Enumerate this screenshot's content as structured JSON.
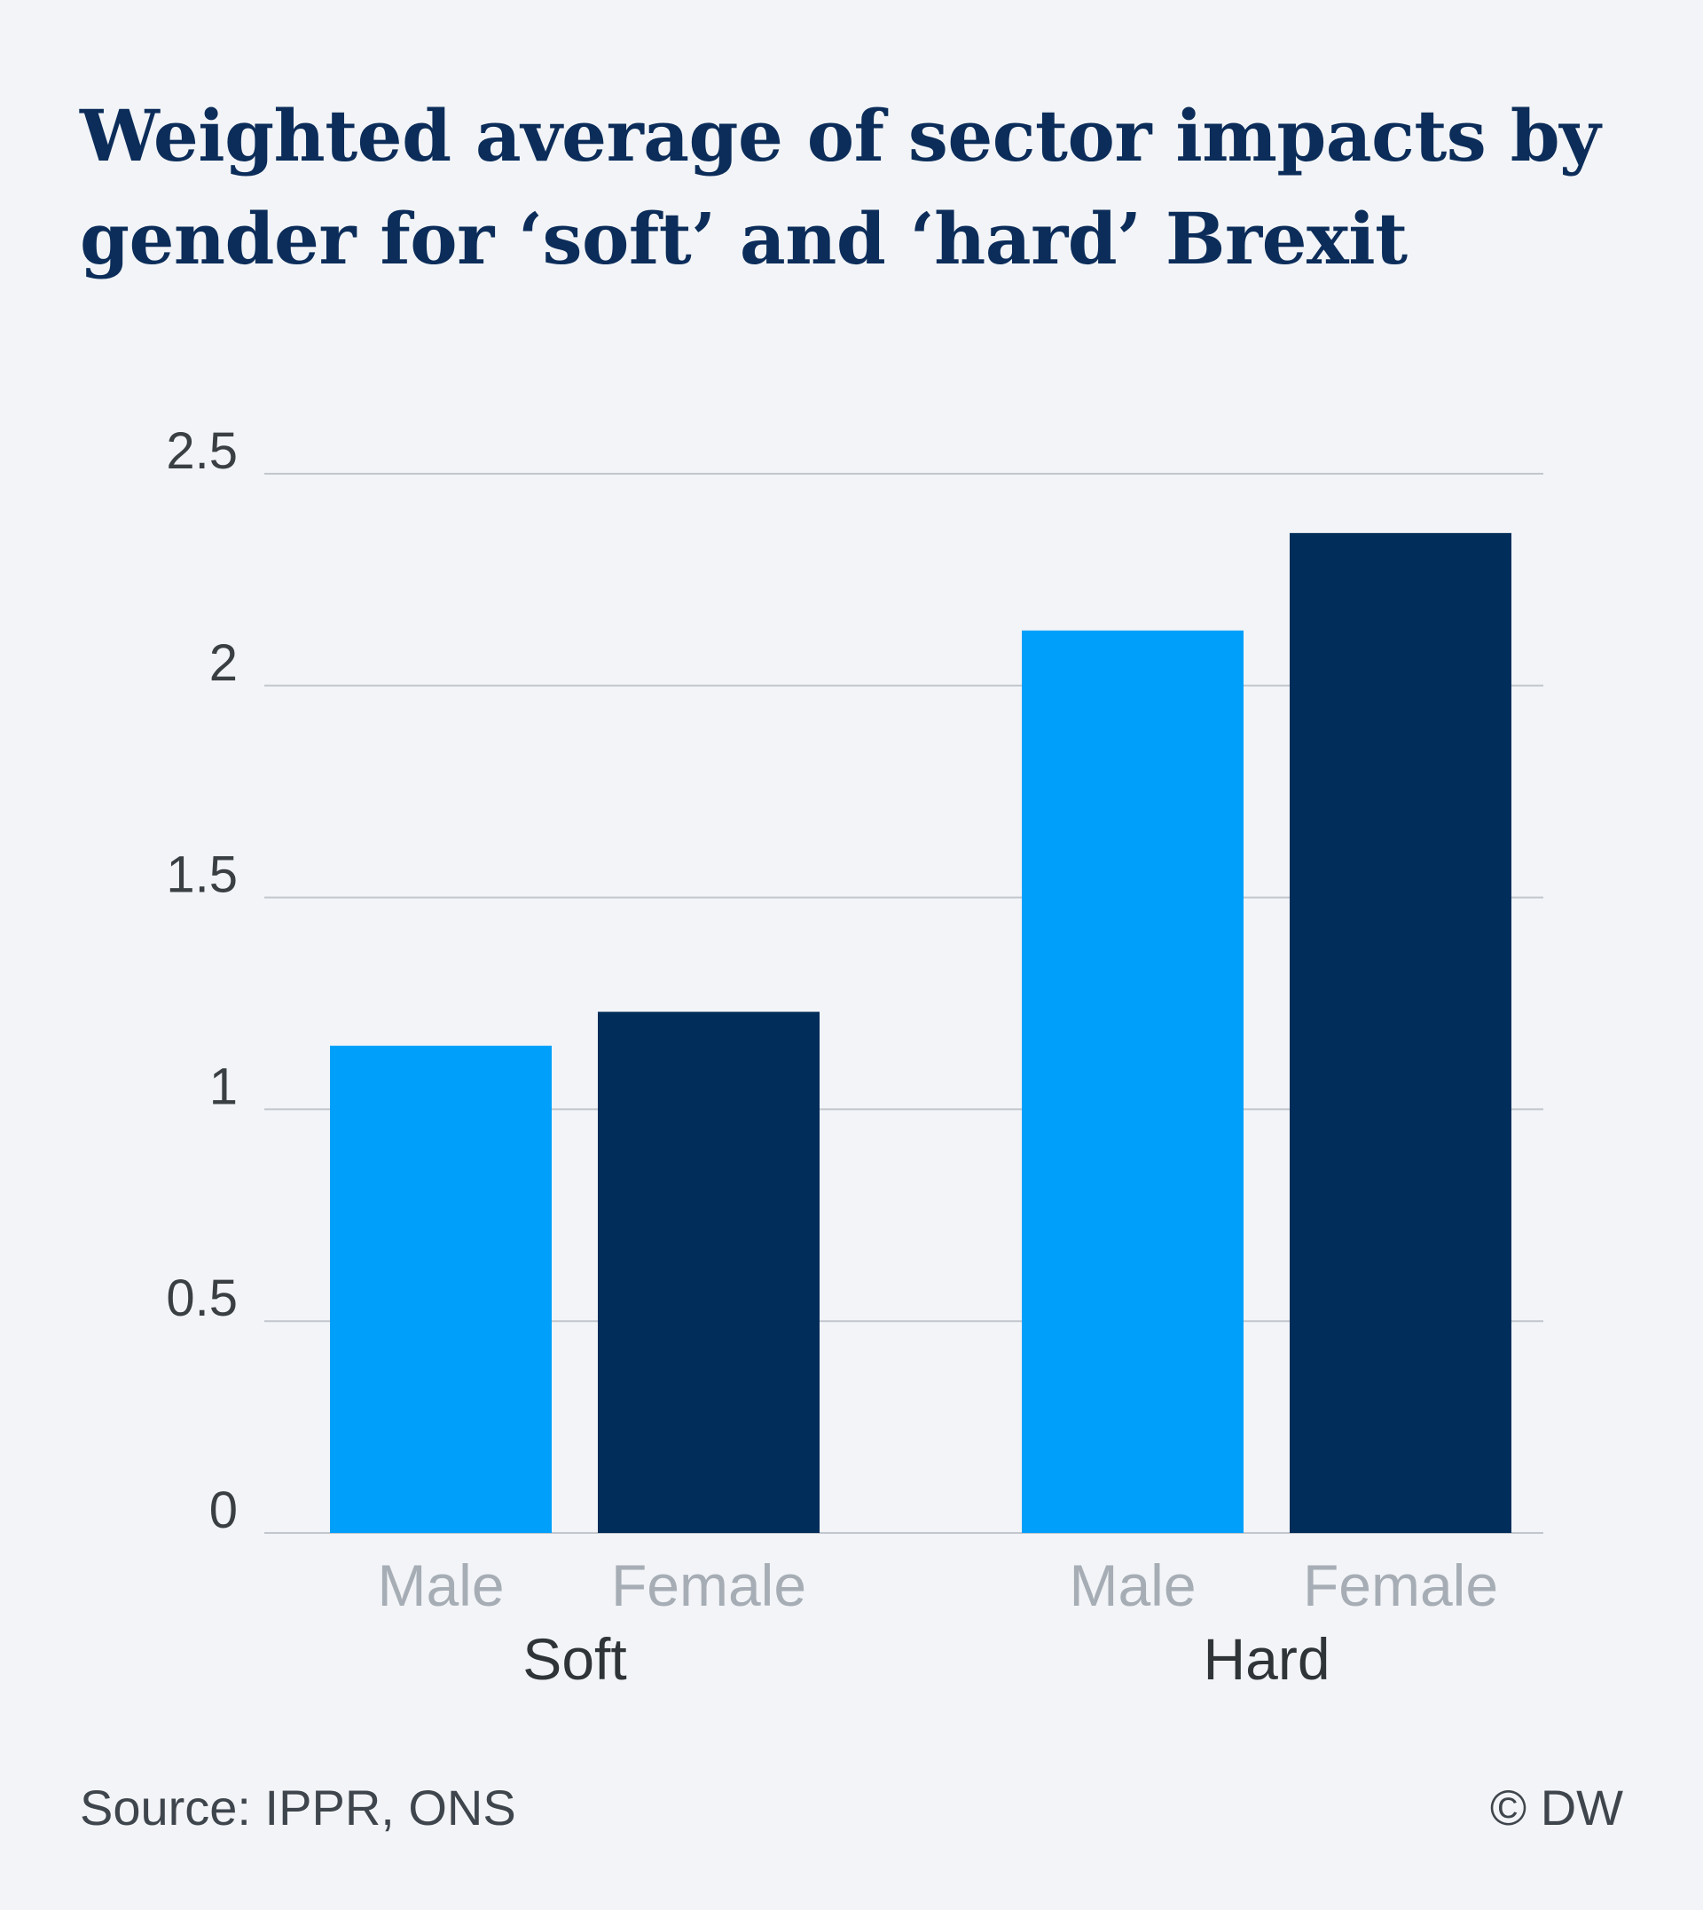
{
  "chart_data": {
    "type": "bar",
    "title": "Weighted average of sector impacts by gender for ‘soft’ and ‘hard’ Brexit",
    "groups": [
      {
        "label": "Soft",
        "bars": [
          {
            "category": "Male",
            "value": 1.15,
            "color": "#00a0fa"
          },
          {
            "category": "Female",
            "value": 1.23,
            "color": "#002d5a"
          }
        ]
      },
      {
        "label": "Hard",
        "bars": [
          {
            "category": "Male",
            "value": 2.13,
            "color": "#00a0fa"
          },
          {
            "category": "Female",
            "value": 2.36,
            "color": "#002d5a"
          }
        ]
      }
    ],
    "ylim": [
      0,
      2.5
    ],
    "yticks": [
      "0",
      "0.5",
      "1",
      "1.5",
      "2",
      "2.5"
    ],
    "grid": true,
    "xlabel": "",
    "ylabel": ""
  },
  "footer": {
    "source": "Source: IPPR, ONS",
    "copyright": "© DW"
  }
}
